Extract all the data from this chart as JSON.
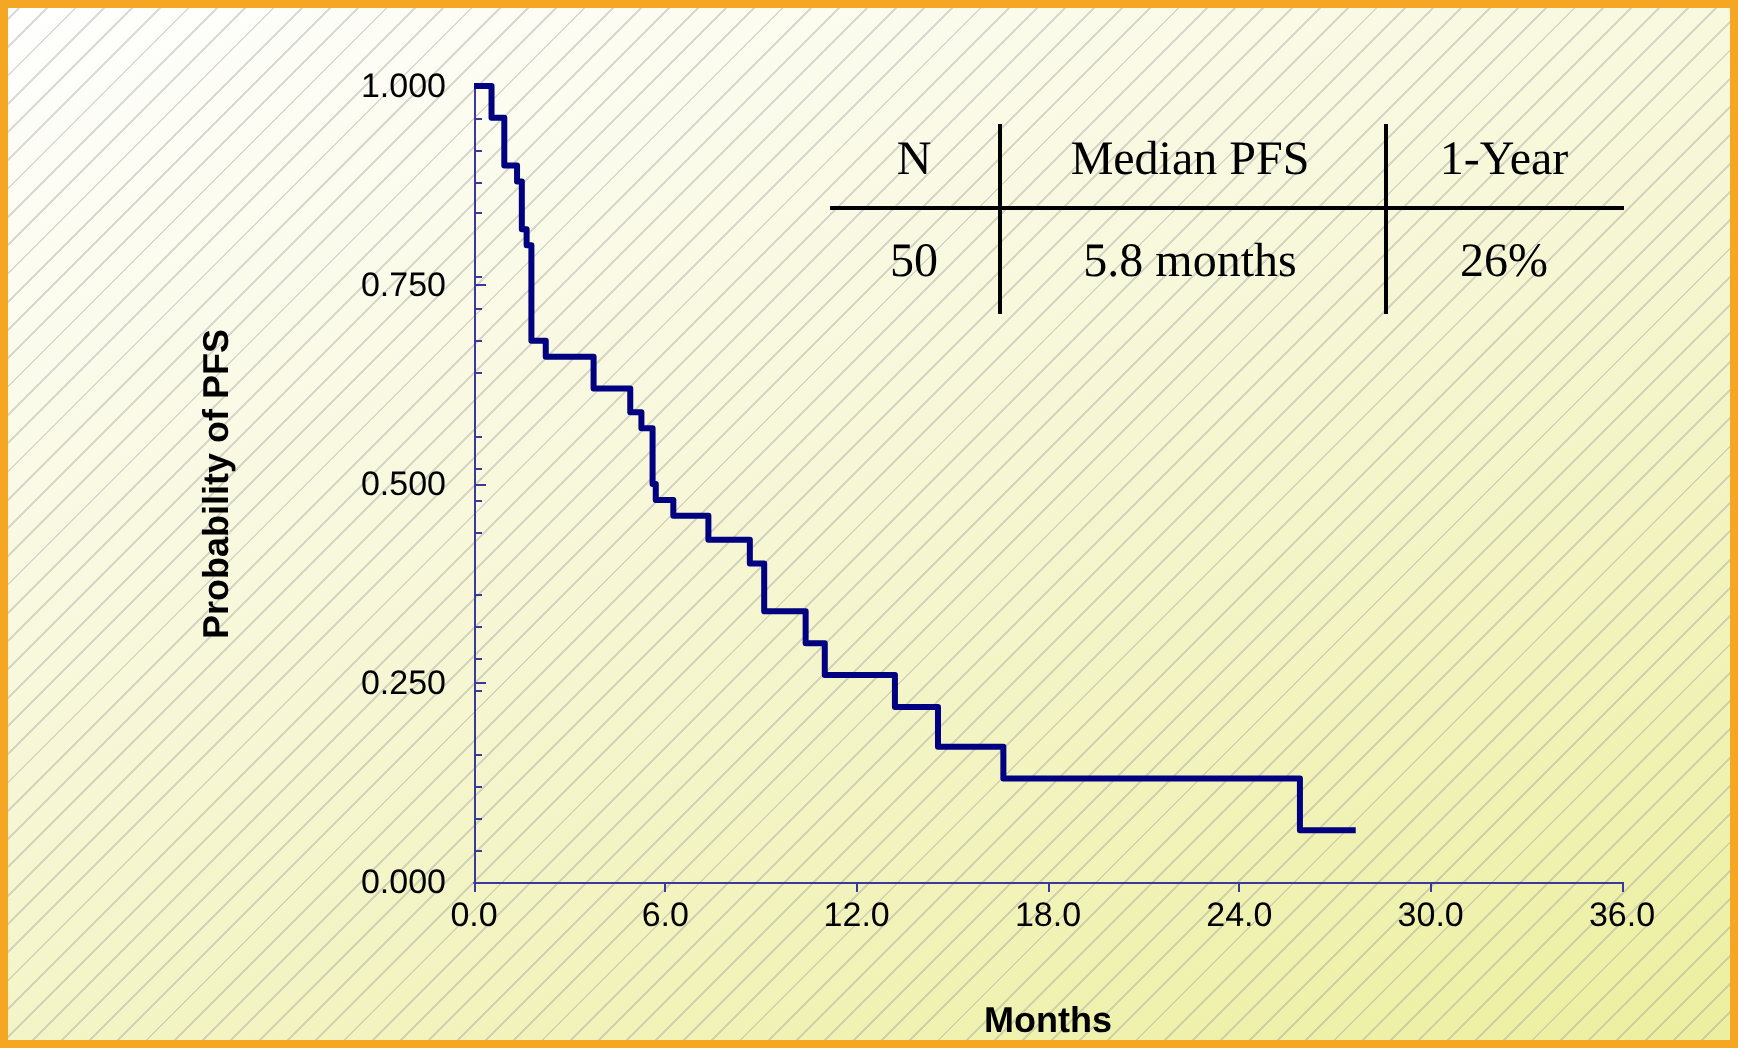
{
  "chart_data": {
    "type": "step",
    "x": [
      0,
      0.55,
      0.95,
      1.35,
      1.5,
      1.65,
      1.8,
      2.25,
      3.75,
      4.9,
      5.25,
      5.6,
      5.7,
      6.25,
      7.35,
      8.65,
      9.1,
      10.4,
      11.0,
      13.2,
      14.55,
      16.6,
      25.9,
      27.65
    ],
    "series": [
      {
        "color": "#000080",
        "values": [
          1.0,
          0.96,
          0.9,
          0.88,
          0.82,
          0.8,
          0.68,
          0.66,
          0.62,
          0.59,
          0.57,
          0.5,
          0.48,
          0.46,
          0.43,
          0.4,
          0.34,
          0.3,
          0.26,
          0.22,
          0.17,
          0.13,
          0.065,
          0.065
        ]
      }
    ],
    "xlabel": "Months",
    "ylabel": "Probability of PFS",
    "xlim": [
      0,
      36
    ],
    "xticks": [
      {
        "value": 0,
        "label": "0.0"
      },
      {
        "value": 6,
        "label": "6.0"
      },
      {
        "value": 12,
        "label": "12.0"
      },
      {
        "value": 18,
        "label": "18.0"
      },
      {
        "value": 24,
        "label": "24.0"
      },
      {
        "value": 30,
        "label": "30.0"
      },
      {
        "value": 36,
        "label": "36.0"
      }
    ],
    "ylim": [
      0,
      1
    ],
    "yticks": [
      {
        "value": 0,
        "label": "0.000"
      },
      {
        "value": 0.25,
        "label": "0.250"
      },
      {
        "value": 0.5,
        "label": "0.500"
      },
      {
        "value": 0.75,
        "label": "0.750"
      },
      {
        "value": 1,
        "label": "1.000"
      }
    ],
    "annotations": [
      "N",
      "Median PFS",
      "1-Year",
      "50",
      "5.8 months",
      "26%"
    ],
    "grid": false,
    "marker": "none",
    "line_style": "solid"
  }
}
